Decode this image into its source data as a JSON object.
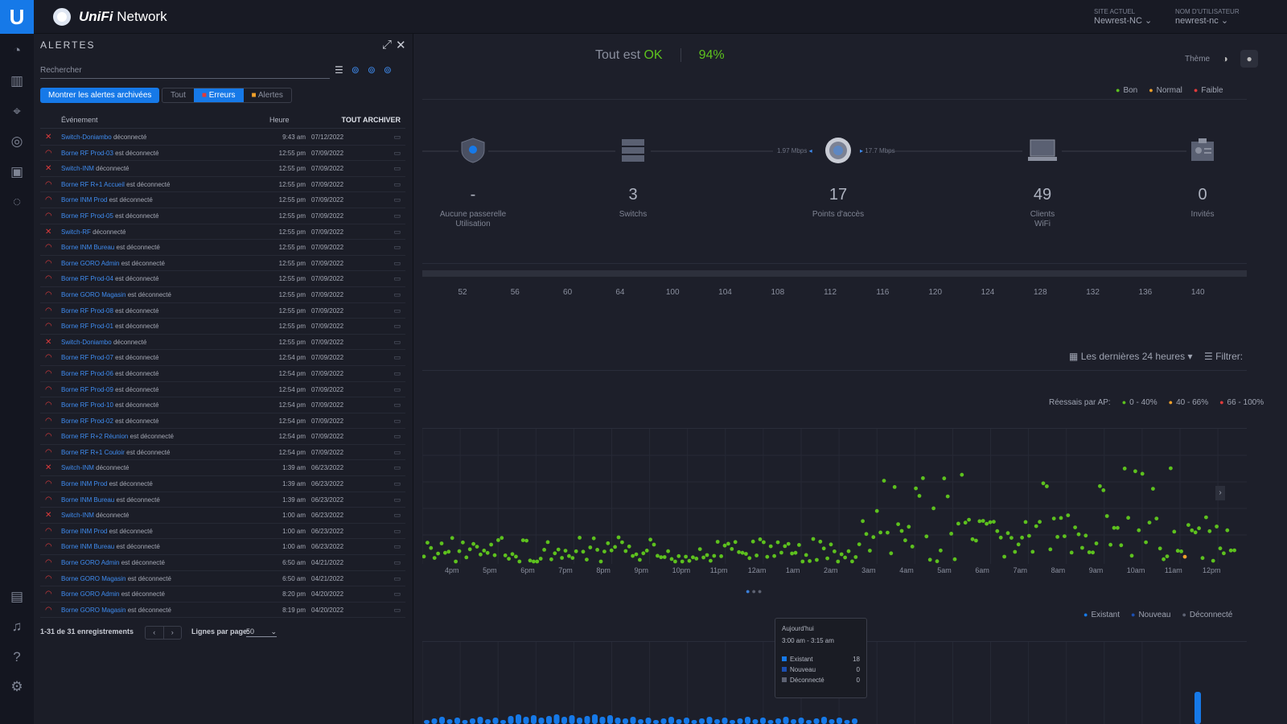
{
  "app": {
    "name_brand": "UniFi",
    "name_rest": "Network"
  },
  "site": {
    "label": "SITE ACTUEL",
    "value": "Newrest-NC",
    "user_label": "NOM D'UTILISATEUR",
    "user_value": "newrest-nc"
  },
  "status": {
    "text": "Tout est",
    "ok": "OK",
    "pct": "94%"
  },
  "theme": {
    "label": "Thème"
  },
  "health_legend": [
    "Bon",
    "Normal",
    "Faible"
  ],
  "colors": {
    "good": "#5dc11e",
    "normal": "#f0a02a",
    "weak": "#e03b3b",
    "accent": "#1679e8"
  },
  "devices": [
    {
      "count": "-",
      "label": "Aucune passerelle",
      "sub": "Utilisation"
    },
    {
      "count": "3",
      "label": "Switchs",
      "sub": ""
    },
    {
      "count": "17",
      "label": "Points d'accès",
      "sub": ""
    },
    {
      "count": "49",
      "label": "Clients",
      "sub": "WiFi"
    },
    {
      "count": "0",
      "label": "Invités",
      "sub": ""
    }
  ],
  "throughput": {
    "down": "1.97 Mbps",
    "up": "17.7 Mbps"
  },
  "channels": [
    "52",
    "56",
    "60",
    "64",
    "100",
    "104",
    "108",
    "112",
    "116",
    "120",
    "124",
    "128",
    "132",
    "136",
    "140"
  ],
  "range": {
    "label": "Les dernières 24 heures",
    "filter": "Filtrer:"
  },
  "retries_legend": {
    "title": "Réessais par AP:",
    "items": [
      "0 - 40%",
      "40 - 66%",
      "66 - 100%"
    ]
  },
  "times": [
    "4pm",
    "5pm",
    "6pm",
    "7pm",
    "8pm",
    "9pm",
    "10pm",
    "11pm",
    "12am",
    "1am",
    "2am",
    "3am",
    "4am",
    "5am",
    "6am",
    "7am",
    "8am",
    "9am",
    "10am",
    "11am",
    "12pm"
  ],
  "clients_legend": [
    "Existant",
    "Nouveau",
    "Déconnecté"
  ],
  "tooltip": {
    "day": "Aujourd'hui",
    "range": "3:00 am - 3:15 am",
    "rows": [
      {
        "label": "Existant",
        "value": "18"
      },
      {
        "label": "Nouveau",
        "value": "0"
      },
      {
        "label": "Déconnecté",
        "value": "0"
      }
    ]
  },
  "alerts": {
    "title": "ALERTES",
    "search_placeholder": "Rechercher",
    "archived_button": "Montrer les alertes archivées",
    "filters": [
      "Tout",
      "Erreurs",
      "Alertes"
    ],
    "columns": {
      "event": "Événement",
      "time": "Heure",
      "archive_all": "TOUT ARCHIVER"
    },
    "rows": [
      {
        "type": "switch",
        "name": "Switch-Doniambo",
        "msg": "déconnecté",
        "time": "9:43 am",
        "date": "07/12/2022"
      },
      {
        "type": "ap",
        "name": "Borne RF Prod-03",
        "msg": "est déconnecté",
        "time": "12:55 pm",
        "date": "07/09/2022"
      },
      {
        "type": "switch",
        "name": "Switch-INM",
        "msg": "déconnecté",
        "time": "12:55 pm",
        "date": "07/09/2022"
      },
      {
        "type": "ap",
        "name": "Borne RF R+1 Accueil",
        "msg": "est déconnecté",
        "time": "12:55 pm",
        "date": "07/09/2022"
      },
      {
        "type": "ap",
        "name": "Borne INM Prod",
        "msg": "est déconnecté",
        "time": "12:55 pm",
        "date": "07/09/2022"
      },
      {
        "type": "ap",
        "name": "Borne RF Prod-05",
        "msg": "est déconnecté",
        "time": "12:55 pm",
        "date": "07/09/2022"
      },
      {
        "type": "switch",
        "name": "Switch-RF",
        "msg": "déconnecté",
        "time": "12:55 pm",
        "date": "07/09/2022"
      },
      {
        "type": "ap",
        "name": "Borne INM Bureau",
        "msg": "est déconnecté",
        "time": "12:55 pm",
        "date": "07/09/2022"
      },
      {
        "type": "ap",
        "name": "Borne GORO Admin",
        "msg": "est déconnecté",
        "time": "12:55 pm",
        "date": "07/09/2022"
      },
      {
        "type": "ap",
        "name": "Borne RF Prod-04",
        "msg": "est déconnecté",
        "time": "12:55 pm",
        "date": "07/09/2022"
      },
      {
        "type": "ap",
        "name": "Borne GORO Magasin",
        "msg": "est déconnecté",
        "time": "12:55 pm",
        "date": "07/09/2022"
      },
      {
        "type": "ap",
        "name": "Borne RF Prod-08",
        "msg": "est déconnecté",
        "time": "12:55 pm",
        "date": "07/09/2022"
      },
      {
        "type": "ap",
        "name": "Borne RF Prod-01",
        "msg": "est déconnecté",
        "time": "12:55 pm",
        "date": "07/09/2022"
      },
      {
        "type": "switch",
        "name": "Switch-Doniambo",
        "msg": "déconnecté",
        "time": "12:55 pm",
        "date": "07/09/2022"
      },
      {
        "type": "ap",
        "name": "Borne RF Prod-07",
        "msg": "est déconnecté",
        "time": "12:54 pm",
        "date": "07/09/2022"
      },
      {
        "type": "ap",
        "name": "Borne RF Prod-06",
        "msg": "est déconnecté",
        "time": "12:54 pm",
        "date": "07/09/2022"
      },
      {
        "type": "ap",
        "name": "Borne RF Prod-09",
        "msg": "est déconnecté",
        "time": "12:54 pm",
        "date": "07/09/2022"
      },
      {
        "type": "ap",
        "name": "Borne RF Prod-10",
        "msg": "est déconnecté",
        "time": "12:54 pm",
        "date": "07/09/2022"
      },
      {
        "type": "ap",
        "name": "Borne RF Prod-02",
        "msg": "est déconnecté",
        "time": "12:54 pm",
        "date": "07/09/2022"
      },
      {
        "type": "ap",
        "name": "Borne RF R+2 Réunion",
        "msg": "est déconnecté",
        "time": "12:54 pm",
        "date": "07/09/2022"
      },
      {
        "type": "ap",
        "name": "Borne RF R+1 Couloir",
        "msg": "est déconnecté",
        "time": "12:54 pm",
        "date": "07/09/2022"
      },
      {
        "type": "switch",
        "name": "Switch-INM",
        "msg": "déconnecté",
        "time": "1:39 am",
        "date": "06/23/2022"
      },
      {
        "type": "ap",
        "name": "Borne INM Prod",
        "msg": "est déconnecté",
        "time": "1:39 am",
        "date": "06/23/2022"
      },
      {
        "type": "ap",
        "name": "Borne INM Bureau",
        "msg": "est déconnecté",
        "time": "1:39 am",
        "date": "06/23/2022"
      },
      {
        "type": "switch",
        "name": "Switch-INM",
        "msg": "déconnecté",
        "time": "1:00 am",
        "date": "06/23/2022"
      },
      {
        "type": "ap",
        "name": "Borne INM Prod",
        "msg": "est déconnecté",
        "time": "1:00 am",
        "date": "06/23/2022"
      },
      {
        "type": "ap",
        "name": "Borne INM Bureau",
        "msg": "est déconnecté",
        "time": "1:00 am",
        "date": "06/23/2022"
      },
      {
        "type": "ap",
        "name": "Borne GORO Admin",
        "msg": "est déconnecté",
        "time": "6:50 am",
        "date": "04/21/2022"
      },
      {
        "type": "ap",
        "name": "Borne GORO Magasin",
        "msg": "est déconnecté",
        "time": "6:50 am",
        "date": "04/21/2022"
      },
      {
        "type": "ap",
        "name": "Borne GORO Admin",
        "msg": "est déconnecté",
        "time": "8:20 pm",
        "date": "04/20/2022"
      },
      {
        "type": "ap",
        "name": "Borne GORO Magasin",
        "msg": "est déconnecté",
        "time": "8:19 pm",
        "date": "04/20/2022"
      }
    ],
    "footer": {
      "count": "1-31 de 31 enregistrements",
      "per_page_label": "Lignes par page:",
      "per_page": "50"
    }
  }
}
